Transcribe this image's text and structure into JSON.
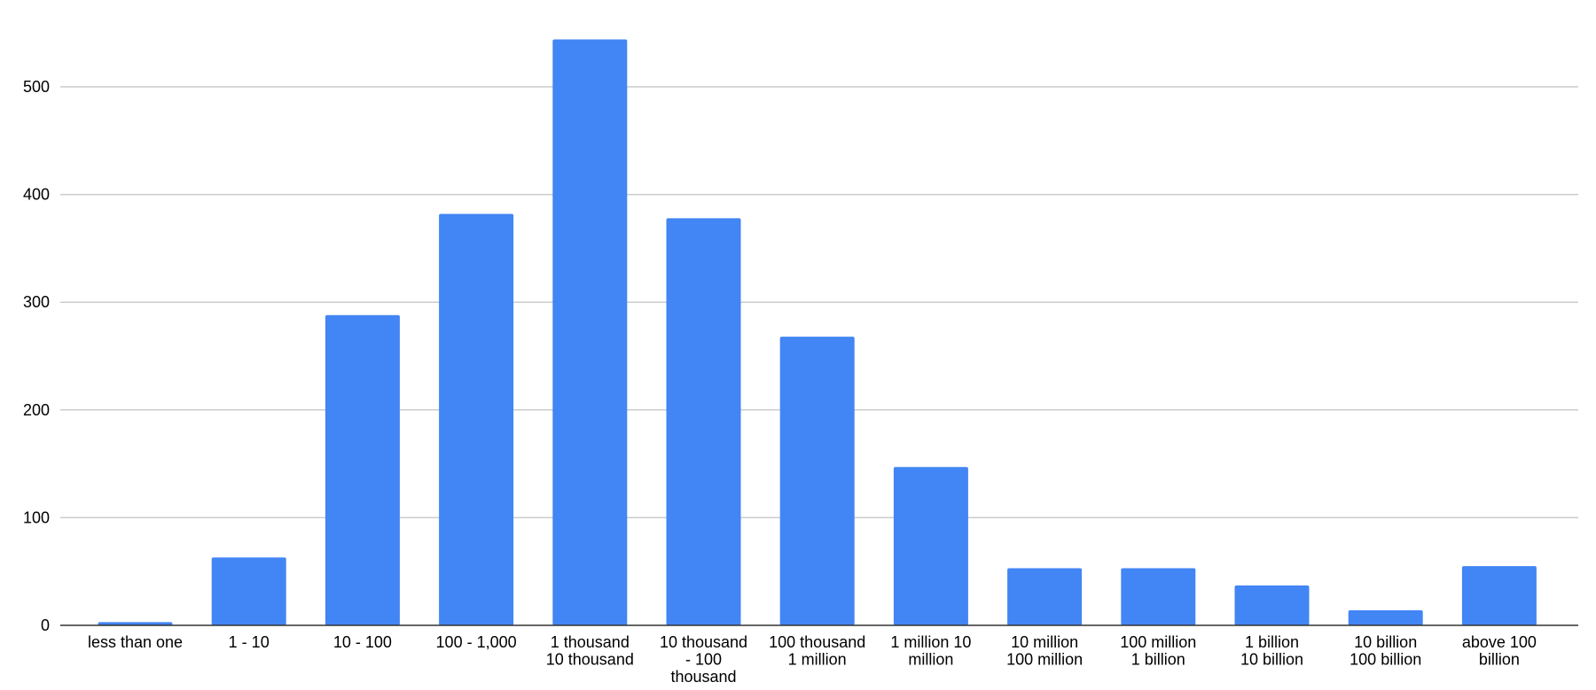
{
  "chart_data": {
    "type": "bar",
    "title": "",
    "xlabel": "",
    "ylabel": "",
    "ylim": [
      0,
      550
    ],
    "yticks": [
      0,
      100,
      200,
      300,
      400,
      500
    ],
    "grid": true,
    "legend": "none",
    "bar_color": "#4285f4",
    "categories": [
      [
        "less than one"
      ],
      [
        "1 - 10"
      ],
      [
        "10 - 100"
      ],
      [
        "100 - 1,000"
      ],
      [
        "1 thousand",
        "10 thousand"
      ],
      [
        "10 thousand",
        "- 100",
        "thousand"
      ],
      [
        "100 thousand",
        "1 million"
      ],
      [
        "1 million  10",
        "million"
      ],
      [
        "10 million",
        "100 million"
      ],
      [
        "100 million",
        "1 billion"
      ],
      [
        "1 billion",
        "10 billion"
      ],
      [
        "10 billion",
        "100 billion"
      ],
      [
        "above 100",
        "billion"
      ]
    ],
    "values": [
      3,
      63,
      288,
      382,
      544,
      378,
      268,
      147,
      53,
      53,
      37,
      14,
      55
    ]
  }
}
